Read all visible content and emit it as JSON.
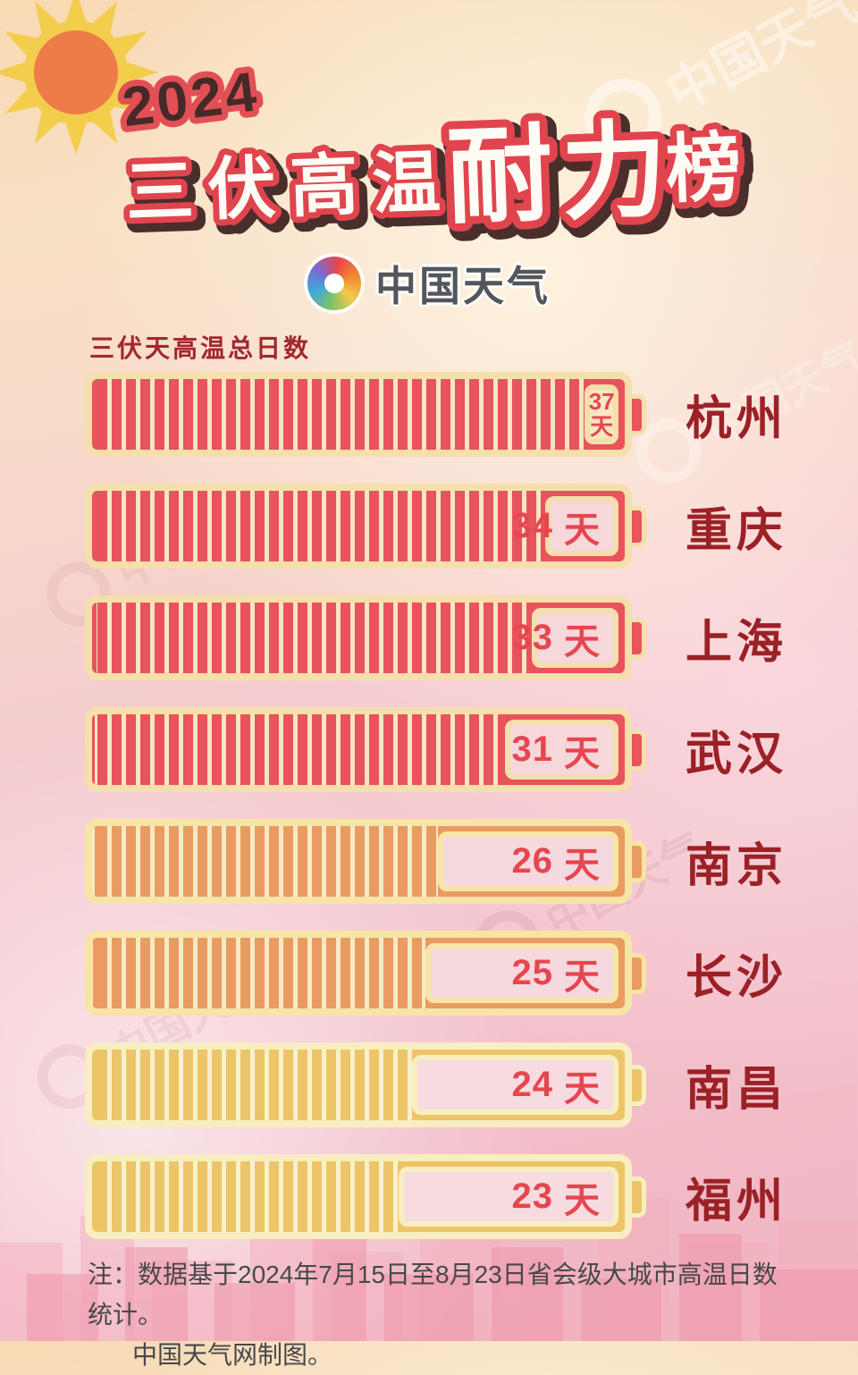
{
  "header": {
    "year": "2024",
    "title_part1": "三伏高温",
    "title_part2": "耐力",
    "title_part3": "榜",
    "logo_text": "中国天气"
  },
  "chart_label": "三伏天高温总日数",
  "unit": "天",
  "scale_max": 40,
  "rows": [
    {
      "city": "杭州",
      "days": 37,
      "tier": "red"
    },
    {
      "city": "重庆",
      "days": 34,
      "tier": "red"
    },
    {
      "city": "上海",
      "days": 33,
      "tier": "red"
    },
    {
      "city": "武汉",
      "days": 31,
      "tier": "red"
    },
    {
      "city": "南京",
      "days": 26,
      "tier": "orange"
    },
    {
      "city": "长沙",
      "days": 25,
      "tier": "orange"
    },
    {
      "city": "南昌",
      "days": 24,
      "tier": "gold"
    },
    {
      "city": "福州",
      "days": 23,
      "tier": "gold"
    }
  ],
  "footer": {
    "line1": "注：数据基于2024年7月15日至8月23日省会级大城市高温日数统计。",
    "line2": "中国天气网制图。"
  },
  "watermark_text": "中国天气",
  "colors": {
    "tier_red": "#e8535c",
    "tier_orange": "#e99b61",
    "tier_gold": "#ecc568",
    "battery_border_cream": "#f5dfac",
    "value_text": "#e6464f",
    "city_text": "#9b2127",
    "label_text": "#a2282e",
    "footer_text": "#47484a"
  },
  "chart_data": {
    "type": "bar",
    "orientation": "horizontal",
    "title": "2024 三伏高温耐力榜",
    "value_label": "三伏天高温总日数",
    "categories": [
      "杭州",
      "重庆",
      "上海",
      "武汉",
      "南京",
      "长沙",
      "南昌",
      "福州"
    ],
    "values": [
      37,
      34,
      33,
      31,
      26,
      25,
      24,
      23
    ],
    "unit": "天",
    "xlim": [
      0,
      40
    ],
    "legend": "none",
    "source_note": "注：数据基于2024年7月15日至8月23日省会级大城市高温日数统计。中国天气网制图。"
  }
}
